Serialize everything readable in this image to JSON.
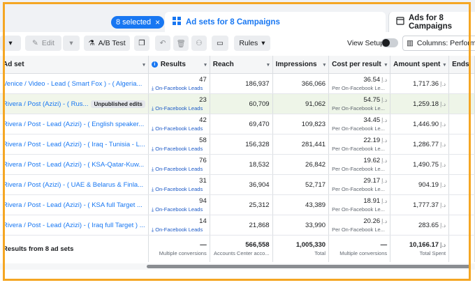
{
  "header": {
    "selected_pill": "8 selected",
    "tabs": [
      {
        "label": "Ad sets for 8 Campaigns",
        "active": true
      },
      {
        "label": "Ads for 8 Campaigns",
        "active": false
      }
    ]
  },
  "toolbar": {
    "edit_label": "Edit",
    "ab_test_label": "A/B Test",
    "rules_label": "Rules",
    "view_setup_label": "View Setup",
    "columns_label": "Columns: Performance"
  },
  "columns": [
    "Ad set",
    "Results",
    "Reach",
    "Impressions",
    "Cost per result",
    "Amount spent",
    "Ends"
  ],
  "currency_symbol": "د.إ",
  "rows": [
    {
      "name": "Venice / Video - Lead ( Smart Fox ) - ( Algeria...",
      "badge": "",
      "results": "47",
      "results_sub": "On-Facebook Leads",
      "reach": "186,937",
      "impressions": "366,066",
      "cpr": "36.54",
      "cpr_sub": "Per On-Facebook Le...",
      "spent": "1,717.36",
      "highlight": false
    },
    {
      "name": "Rivera / Post (Azizi) - ( Rus...",
      "badge": "Unpublished edits",
      "results": "23",
      "results_sub": "On-Facebook Leads",
      "reach": "60,709",
      "impressions": "91,062",
      "cpr": "54.75",
      "cpr_sub": "Per On-Facebook Le...",
      "spent": "1,259.18",
      "highlight": true
    },
    {
      "name": "Rivera / Post - Lead (Azizi) - ( English speaker...",
      "badge": "",
      "results": "42",
      "results_sub": "On-Facebook Leads",
      "reach": "69,470",
      "impressions": "109,823",
      "cpr": "34.45",
      "cpr_sub": "Per On-Facebook Le...",
      "spent": "1,446.90",
      "highlight": false
    },
    {
      "name": "Rivera / Post - Lead (Azizi) - ( Iraq - Tunisia - L...",
      "badge": "",
      "results": "58",
      "results_sub": "On-Facebook Leads",
      "reach": "156,328",
      "impressions": "281,441",
      "cpr": "22.19",
      "cpr_sub": "Per On-Facebook Le...",
      "spent": "1,286.77",
      "highlight": false
    },
    {
      "name": "Rivera / Post - Lead (Azizi) - ( KSA-Qatar-Kuw...",
      "badge": "",
      "results": "76",
      "results_sub": "On-Facebook Leads",
      "reach": "18,532",
      "impressions": "26,842",
      "cpr": "19.62",
      "cpr_sub": "Per On-Facebook Le...",
      "spent": "1,490.75",
      "highlight": false
    },
    {
      "name": "Rivera / Post (Azizi) - ( UAE & Belarus & Finla...",
      "badge": "",
      "results": "31",
      "results_sub": "On-Facebook Leads",
      "reach": "36,904",
      "impressions": "52,717",
      "cpr": "29.17",
      "cpr_sub": "Per On-Facebook Le...",
      "spent": "904.19",
      "highlight": false
    },
    {
      "name": "Rivera / Post - Lead (Azizi) - ( KSA full Target ...",
      "badge": "",
      "results": "94",
      "results_sub": "On-Facebook Leads",
      "reach": "25,312",
      "impressions": "43,389",
      "cpr": "18.91",
      "cpr_sub": "Per On-Facebook Le...",
      "spent": "1,777.37",
      "highlight": false
    },
    {
      "name": "Rivera / Post - Lead (Azizi) - ( Iraq full Target ) ...",
      "badge": "",
      "results": "14",
      "results_sub": "On-Facebook Leads",
      "reach": "21,868",
      "impressions": "33,990",
      "cpr": "20.26",
      "cpr_sub": "Per On-Facebook Le...",
      "spent": "283.65",
      "highlight": false
    }
  ],
  "totals": {
    "label": "Results from 8 ad sets",
    "results": "—",
    "results_sub": "Multiple conversions",
    "reach": "566,558",
    "reach_sub": "Accounts Center acco...",
    "impressions": "1,005,330",
    "impressions_sub": "Total",
    "cpr": "—",
    "cpr_sub": "Multiple conversions",
    "spent": "10,166.17",
    "spent_sub": "Total Spent"
  },
  "colors": {
    "accent": "#1877f2",
    "frame": "#f5a623",
    "highlight": "#eef5e8"
  }
}
